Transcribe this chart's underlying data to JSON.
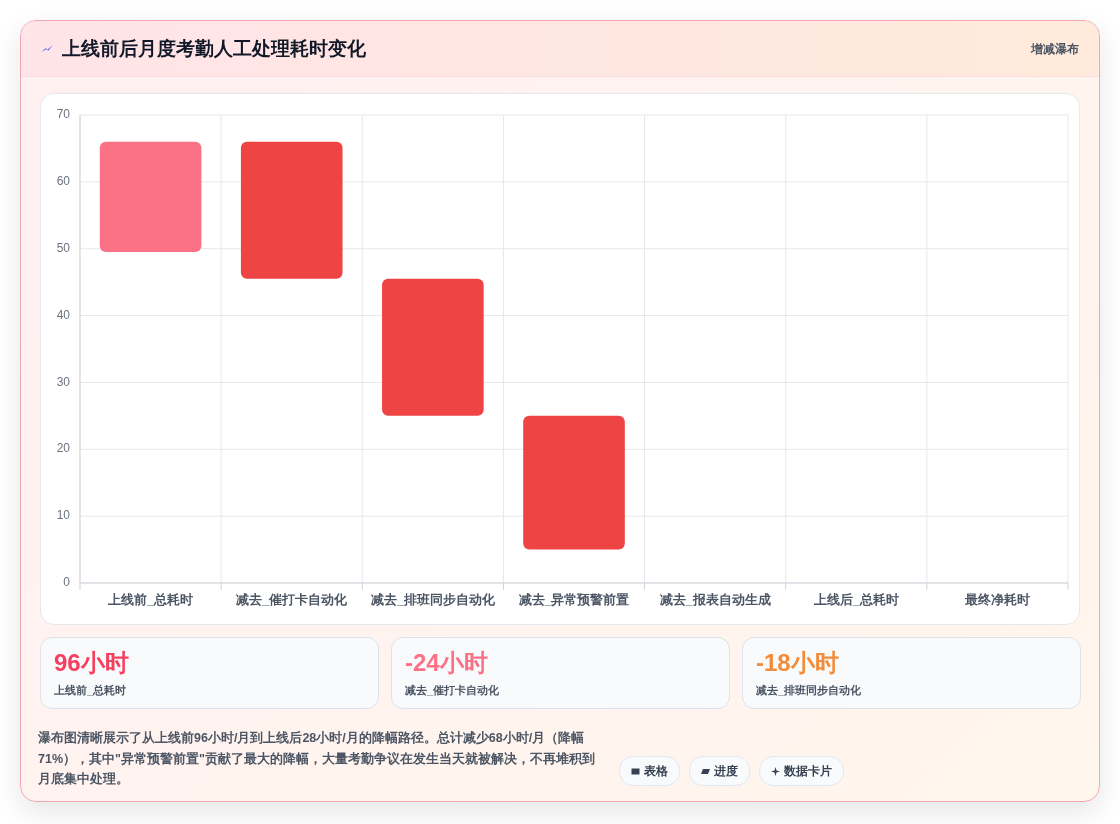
{
  "chart_data": [
    {
      "type": "bar",
      "title": "上线前后月度考勤人工处理耗时变化",
      "subtitle": "增减瀑布",
      "categories": [
        "上线前_总耗时",
        "减去_催打卡自动化",
        "减去_排班同步自动化",
        "减去_异常预警前置",
        "减去_报表自动生成",
        "上线后_总耗时",
        "最终净耗时"
      ],
      "values": [
        16.5,
        20.5,
        20.5,
        20,
        null,
        null,
        null
      ],
      "base": [
        49.5,
        45.5,
        25,
        5,
        null,
        null,
        null
      ],
      "colors": [
        "#fb7185",
        "#ef4444",
        "#ef4444",
        "#ef4444",
        null,
        null,
        null
      ],
      "ylim": [
        0,
        70
      ],
      "yticks": [
        0,
        10,
        20,
        30,
        40,
        50,
        60,
        70
      ],
      "grid": true,
      "annotations": [
        "瀑布图清晰展示了从上线前96小时/月到上线后28小时/月的降幅路径。总计减少68小时/月（降幅71%），其中\"异常预警前置\"贡献了最大的降幅，大量考勤争议在发生当天就被解决，不再堆积到月底集中处理。",
        "表格",
        "进度",
        "数据卡片"
      ]
    },
    {
      "type": "other",
      "annotations": [
        "96小时",
        "上线前_总耗时",
        "-24小时",
        "减去_催打卡自动化",
        "-18小时",
        "减去_排班同步自动化"
      ],
      "colors": [
        "#f43f5e",
        "#fb7185",
        "#f28c3a"
      ]
    }
  ]
}
